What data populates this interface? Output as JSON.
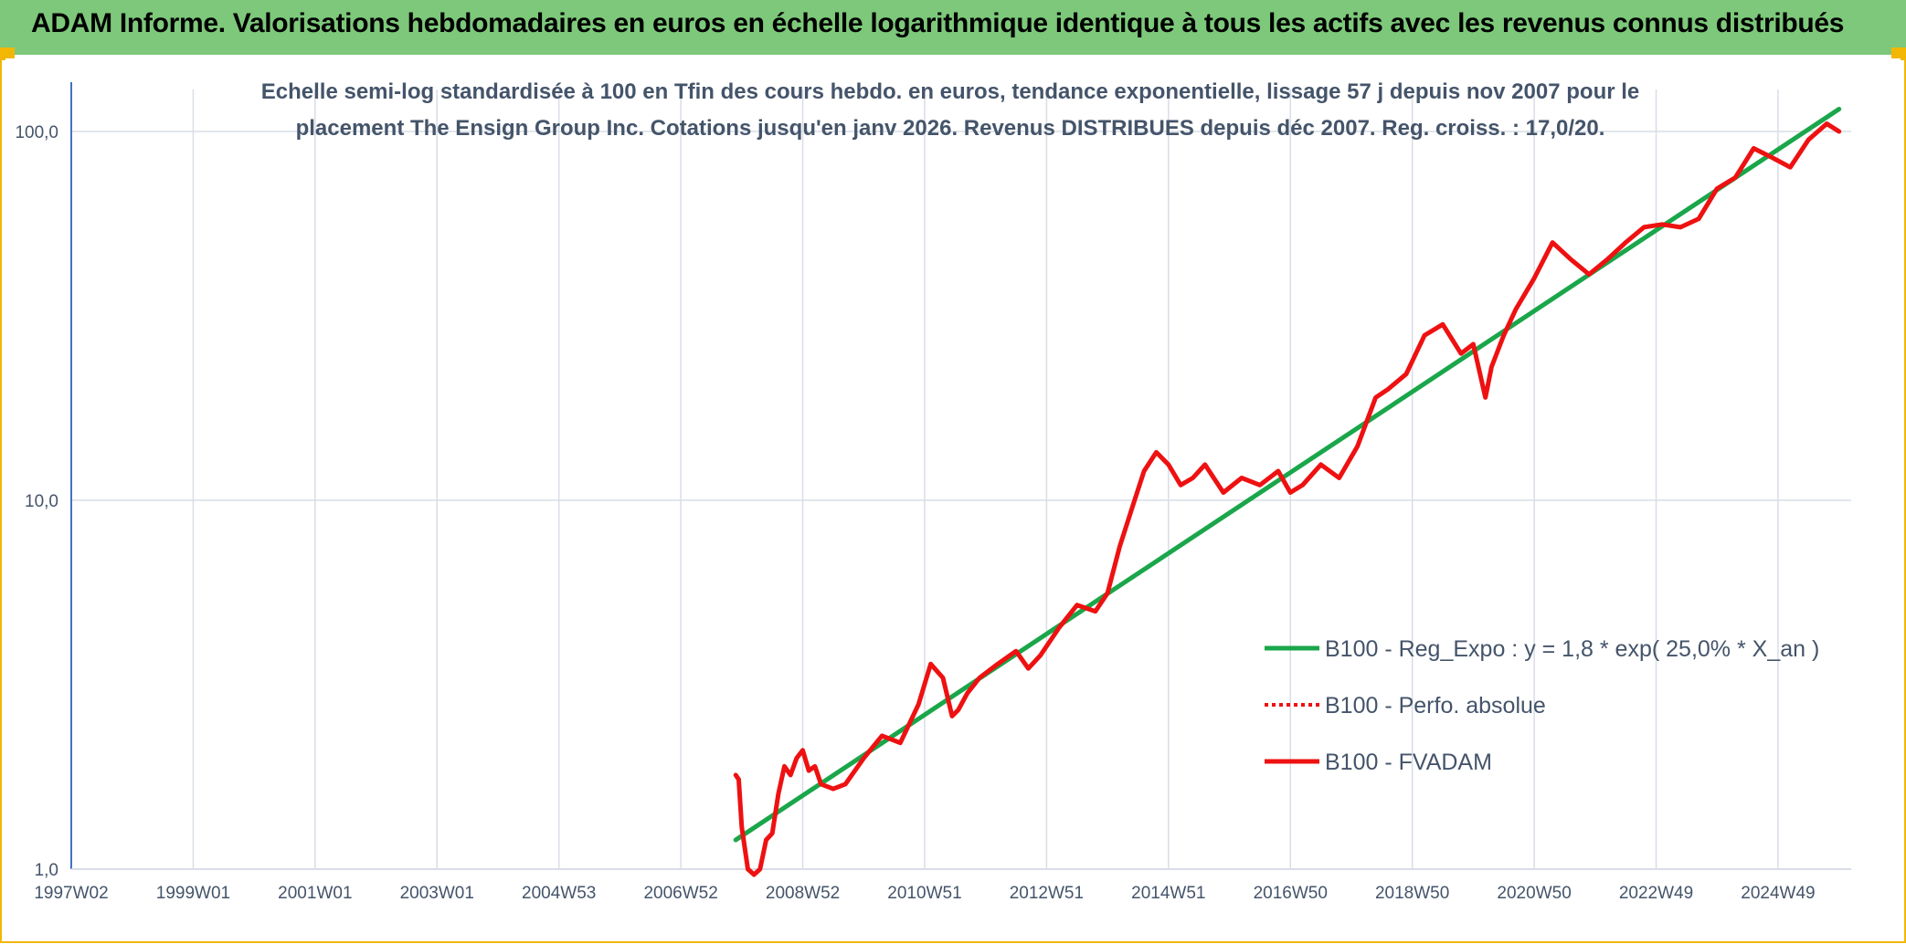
{
  "header": {
    "title": "ADAM Informe. Valorisations hebdomadaires en euros en échelle logarithmique identique à tous les actifs avec les revenus connus distribués"
  },
  "colors": {
    "header_bg": "#7dc87a",
    "frame": "#f2b705",
    "trend": "#1aa64a",
    "series": "#ee1111",
    "grid": "#d9dde6",
    "axis_text": "#44546a"
  },
  "chart_data": {
    "type": "line",
    "title_lines": [
      "Echelle semi-log standardisée à 100 en Tfin des cours hebdo. en euros, tendance exponentielle, lissage 57 j depuis nov 2007 pour le",
      "placement The Ensign Group Inc. Cotations jusqu'en janv 2026. Revenus DISTRIBUES depuis déc 2007. Reg. croiss. : 17,0/20."
    ],
    "y_scale": "log",
    "ylim": [
      1,
      130
    ],
    "y_ticks": [
      {
        "value": 1,
        "label": "1,0"
      },
      {
        "value": 10,
        "label": "10,0"
      },
      {
        "value": 100,
        "label": "100,0"
      }
    ],
    "xlim": [
      1997.0,
      2026.2
    ],
    "x_ticks": [
      {
        "value": 1997.0,
        "label": "1997W02"
      },
      {
        "value": 1999.0,
        "label": "1999W01"
      },
      {
        "value": 2001.0,
        "label": "2001W01"
      },
      {
        "value": 2003.0,
        "label": "2003W01"
      },
      {
        "value": 2005.0,
        "label": "2004W53"
      },
      {
        "value": 2007.0,
        "label": "2006W52"
      },
      {
        "value": 2009.0,
        "label": "2008W52"
      },
      {
        "value": 2011.0,
        "label": "2010W51"
      },
      {
        "value": 2013.0,
        "label": "2012W51"
      },
      {
        "value": 2015.0,
        "label": "2014W51"
      },
      {
        "value": 2017.0,
        "label": "2016W50"
      },
      {
        "value": 2019.0,
        "label": "2018W50"
      },
      {
        "value": 2021.0,
        "label": "2020W50"
      },
      {
        "value": 2023.0,
        "label": "2022W49"
      },
      {
        "value": 2025.0,
        "label": "2024W49"
      }
    ],
    "grid": true,
    "legend_position": "right",
    "series": [
      {
        "name": "B100 - Reg_Expo : y = 1,8 * exp( 25,0% *  X_an )",
        "style": "solid",
        "color": "#1aa64a",
        "x": [
          2007.9,
          2026.0
        ],
        "y": [
          1.2,
          115
        ]
      },
      {
        "name": "B100 - Perfo. absolue",
        "style": "dotted",
        "color": "#ee1111",
        "x": [],
        "y": []
      },
      {
        "name": "B100 - FVADAM",
        "style": "solid",
        "color": "#ee1111",
        "x": [
          2007.9,
          2007.95,
          2008.0,
          2008.1,
          2008.2,
          2008.3,
          2008.4,
          2008.5,
          2008.6,
          2008.7,
          2008.8,
          2008.9,
          2009.0,
          2009.1,
          2009.2,
          2009.3,
          2009.5,
          2009.7,
          2010.0,
          2010.3,
          2010.6,
          2010.9,
          2011.1,
          2011.3,
          2011.45,
          2011.55,
          2011.7,
          2011.9,
          2012.2,
          2012.5,
          2012.7,
          2012.9,
          2013.2,
          2013.5,
          2013.8,
          2014.0,
          2014.2,
          2014.4,
          2014.6,
          2014.8,
          2015.0,
          2015.2,
          2015.4,
          2015.6,
          2015.9,
          2016.2,
          2016.5,
          2016.8,
          2017.0,
          2017.2,
          2017.5,
          2017.8,
          2018.1,
          2018.4,
          2018.6,
          2018.9,
          2019.2,
          2019.5,
          2019.8,
          2020.0,
          2020.2,
          2020.3,
          2020.5,
          2020.7,
          2021.0,
          2021.3,
          2021.6,
          2021.9,
          2022.2,
          2022.5,
          2022.8,
          2023.1,
          2023.4,
          2023.7,
          2024.0,
          2024.3,
          2024.6,
          2024.9,
          2025.2,
          2025.5,
          2025.8,
          2026.0
        ],
        "y": [
          1.8,
          1.75,
          1.3,
          1.0,
          0.95,
          1.0,
          1.2,
          1.25,
          1.6,
          1.9,
          1.8,
          2.0,
          2.1,
          1.85,
          1.9,
          1.7,
          1.65,
          1.7,
          2.0,
          2.3,
          2.2,
          2.8,
          3.6,
          3.3,
          2.6,
          2.7,
          3.0,
          3.3,
          3.6,
          3.9,
          3.5,
          3.8,
          4.5,
          5.2,
          5.0,
          5.6,
          7.5,
          9.5,
          12.0,
          13.5,
          12.5,
          11.0,
          11.5,
          12.5,
          10.5,
          11.5,
          11.0,
          12.0,
          10.5,
          11.0,
          12.5,
          11.5,
          14.0,
          19.0,
          20.0,
          22.0,
          28.0,
          30.0,
          25.0,
          26.5,
          19.0,
          23.0,
          28.0,
          33.0,
          40.0,
          50.0,
          45.0,
          41.0,
          45.0,
          50.0,
          55.0,
          56.0,
          55.0,
          58.0,
          70.0,
          75.0,
          90.0,
          85.0,
          80.0,
          95.0,
          105.0,
          100.0
        ]
      }
    ]
  }
}
